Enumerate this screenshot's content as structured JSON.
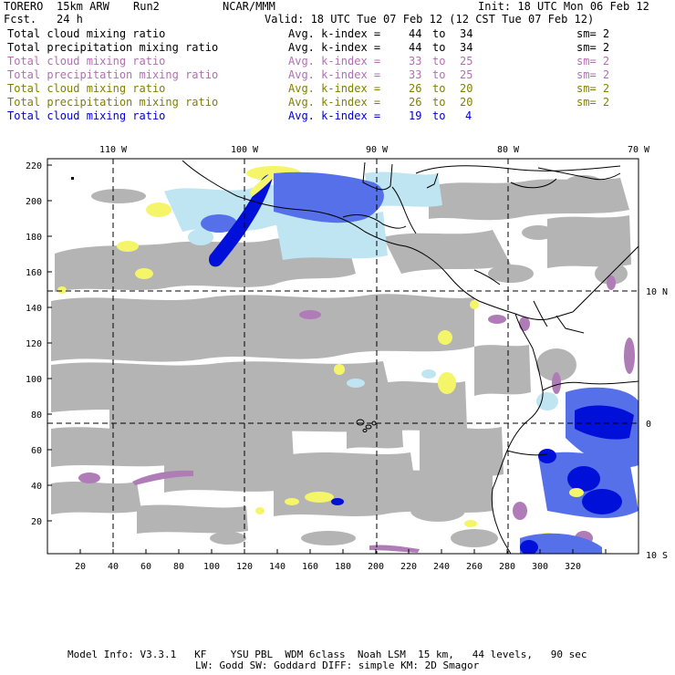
{
  "header": {
    "model": "TORERO",
    "resolution": "15km ARW",
    "run": "Run2",
    "org": "NCAR/MMM",
    "init": "Init: 18 UTC Mon 06 Feb 12",
    "fcst_label": "Fcst.",
    "fcst_value": "24 h",
    "valid": "Valid: 18 UTC Tue 07 Feb 12 (12 CST Tue 07 Feb 12)"
  },
  "legend": [
    {
      "field": "Total cloud mixing ratio",
      "avg": "Avg. k-index = ",
      "from": "44",
      "to_label": "to",
      "to": "34",
      "sm": "sm= 2",
      "color": "#000000"
    },
    {
      "field": "Total precipitation mixing ratio",
      "avg": "Avg. k-index = ",
      "from": "44",
      "to_label": "to",
      "to": "34",
      "sm": "sm= 2",
      "color": "#000000"
    },
    {
      "field": "Total cloud mixing ratio",
      "avg": "Avg. k-index = ",
      "from": "33",
      "to_label": "to",
      "to": "25",
      "sm": "sm= 2",
      "color": "#b070b0"
    },
    {
      "field": "Total precipitation mixing ratio",
      "avg": "Avg. k-index = ",
      "from": "33",
      "to_label": "to",
      "to": "25",
      "sm": "sm= 2",
      "color": "#b070b0"
    },
    {
      "field": "Total cloud mixing ratio",
      "avg": "Avg. k-index = ",
      "from": "26",
      "to_label": "to",
      "to": "20",
      "sm": "sm= 2",
      "color": "#808000"
    },
    {
      "field": "Total precipitation mixing ratio",
      "avg": "Avg. k-index = ",
      "from": "26",
      "to_label": "to",
      "to": "20",
      "sm": "sm= 2",
      "color": "#808000"
    },
    {
      "field": "Total cloud mixing ratio",
      "avg": "Avg. k-index = ",
      "from": "19",
      "to_label": "to",
      "to": "4",
      "sm": "",
      "color": "#0000cc"
    }
  ],
  "axes": {
    "top_lon": [
      "110 W",
      "100 W",
      "90 W",
      "80 W",
      "70 W"
    ],
    "right_lat": [
      "10 N",
      "0",
      "10 S"
    ],
    "left_y": [
      "220",
      "200",
      "180",
      "160",
      "140",
      "120",
      "100",
      "80",
      "60",
      "40",
      "20"
    ],
    "bottom_x": [
      "20",
      "40",
      "60",
      "80",
      "100",
      "120",
      "140",
      "160",
      "180",
      "200",
      "220",
      "240",
      "260",
      "280",
      "300",
      "320"
    ]
  },
  "footer": {
    "line1": "Model Info: V3.3.1   KF    YSU PBL  WDM 6class  Noah LSM  15 km,   44 levels,   90 sec",
    "line2": "LW: Godd SW: Goddard DIFF: simple KM: 2D Smagor"
  }
}
